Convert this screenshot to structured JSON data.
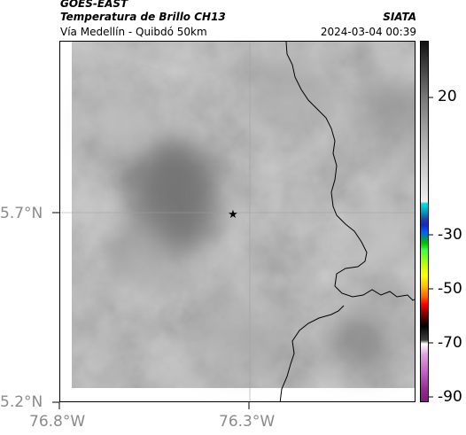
{
  "header": {
    "satellite": "GOES-EAST",
    "product": "Temperatura de Brillo CH13",
    "region": "Vía Medellín - Quibdó 50km",
    "agency": "SIATA",
    "timestamp": "2024-03-04 00:39"
  },
  "map": {
    "lat_ticks": [
      {
        "value": 5.7,
        "label": "5.7°N"
      },
      {
        "value": 5.2,
        "label": "5.2°N"
      }
    ],
    "lon_ticks": [
      {
        "value": -76.8,
        "label": "76.8°W"
      },
      {
        "value": -76.3,
        "label": "76.3°W"
      }
    ],
    "marker_icon": "star-icon",
    "colors": {
      "cloud_base": "#9c9c9c",
      "border_line": "#000000"
    }
  },
  "colorbar": {
    "labels": [
      {
        "value": 20,
        "label": "20"
      },
      {
        "value": -30,
        "label": "-30"
      },
      {
        "value": -50,
        "label": "-50"
      },
      {
        "value": -70,
        "label": "-70"
      },
      {
        "value": -90,
        "label": "-90"
      }
    ]
  }
}
